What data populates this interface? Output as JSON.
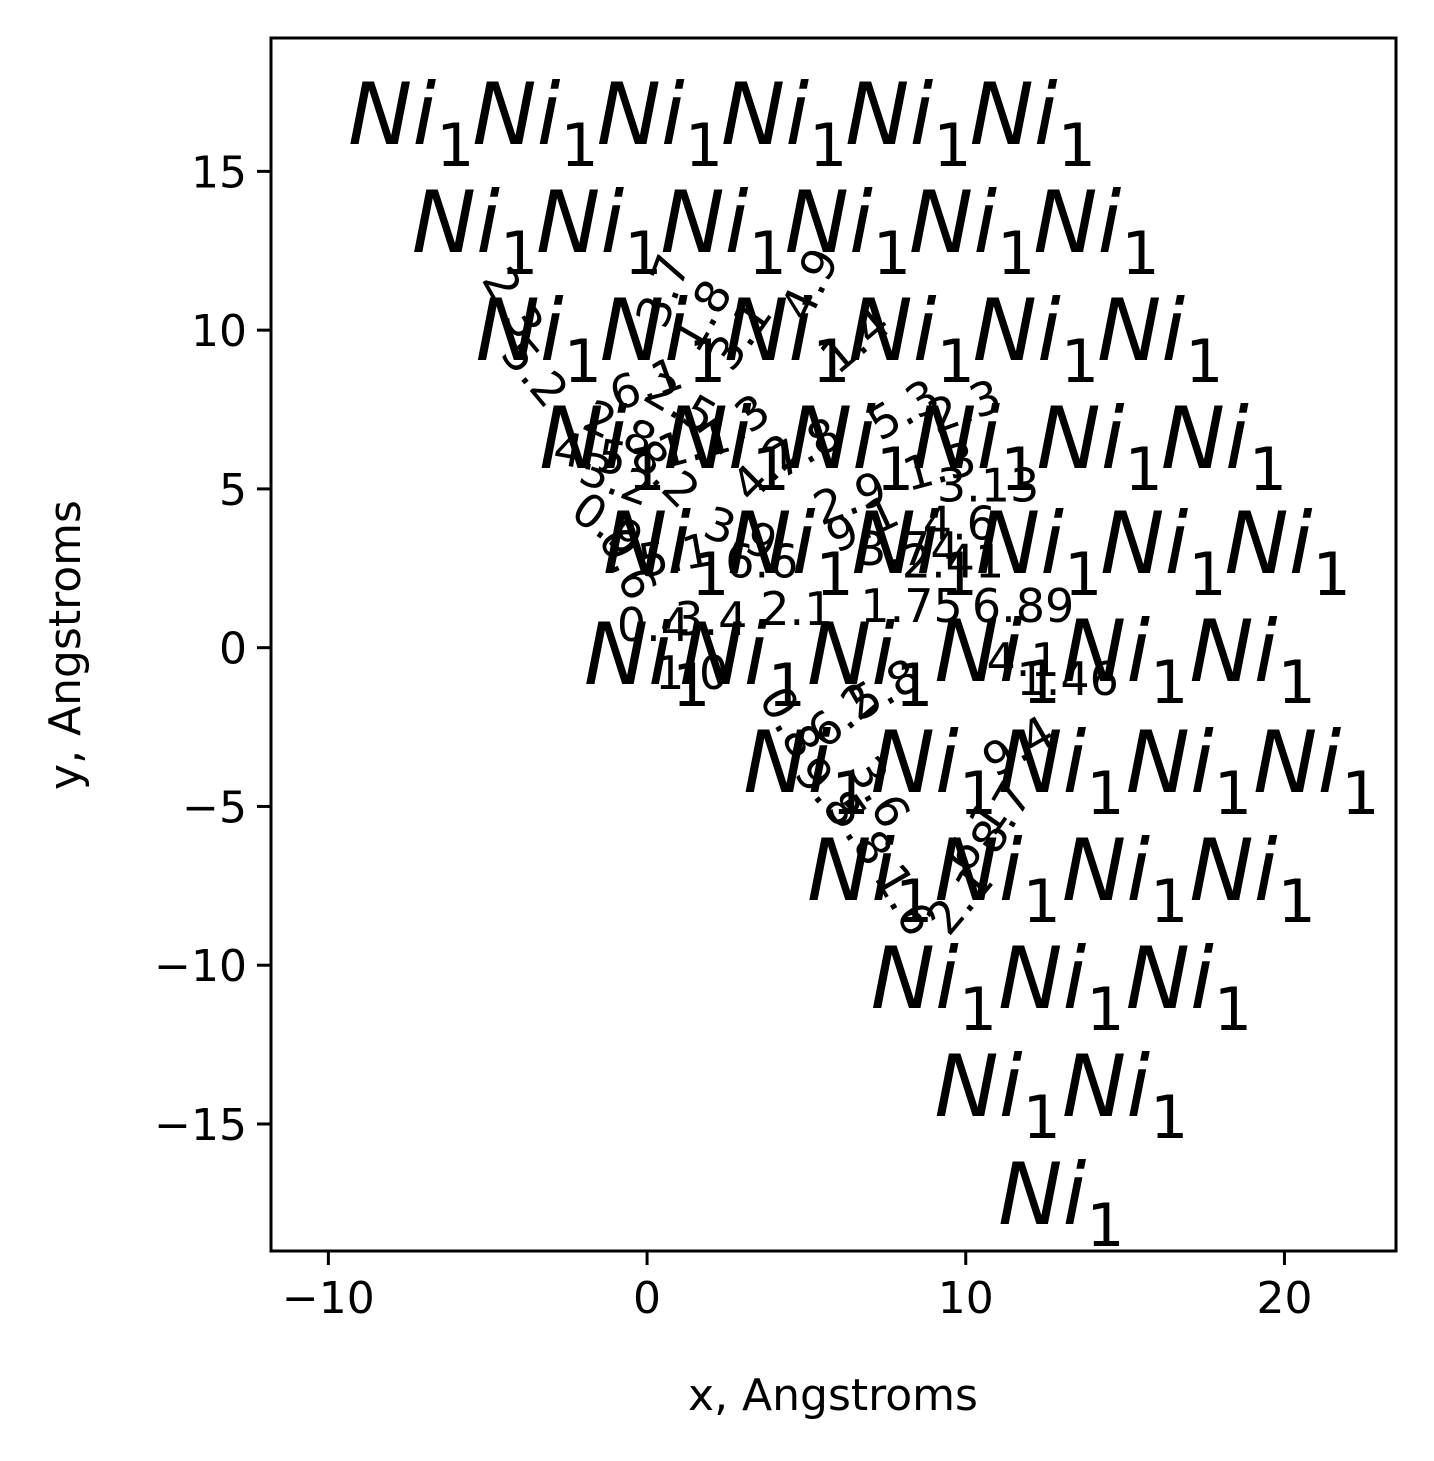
{
  "chart_data": {
    "type": "scatter",
    "xlabel": "x, Angstroms",
    "ylabel": "y, Angstroms",
    "xlim": [
      -11.8,
      23.5
    ],
    "ylim": [
      -19.0,
      19.2
    ],
    "xticks": [
      -10,
      0,
      10,
      20
    ],
    "xtick_labels": [
      "−10",
      "0",
      "10",
      "20"
    ],
    "yticks": [
      -15,
      -10,
      -5,
      0,
      5,
      10,
      15
    ],
    "ytick_labels": [
      "−15",
      "−10",
      "−5",
      "0",
      "5",
      "10",
      "15"
    ],
    "grid": false,
    "atom_label": {
      "element": "Ni",
      "count": "1"
    },
    "atoms": [
      {
        "x": -7.4,
        "y": 16.8
      },
      {
        "x": -3.5,
        "y": 16.8
      },
      {
        "x": 0.4,
        "y": 16.8
      },
      {
        "x": 4.3,
        "y": 16.8
      },
      {
        "x": 8.2,
        "y": 16.8
      },
      {
        "x": 12.1,
        "y": 16.8
      },
      {
        "x": -5.4,
        "y": 13.4
      },
      {
        "x": -1.5,
        "y": 13.4
      },
      {
        "x": 2.4,
        "y": 13.4
      },
      {
        "x": 6.3,
        "y": 13.4
      },
      {
        "x": 10.2,
        "y": 13.4
      },
      {
        "x": 14.1,
        "y": 13.4
      },
      {
        "x": -3.4,
        "y": 10.0
      },
      {
        "x": 0.5,
        "y": 10.0
      },
      {
        "x": 4.4,
        "y": 10.0
      },
      {
        "x": 8.3,
        "y": 10.0
      },
      {
        "x": 12.2,
        "y": 10.0
      },
      {
        "x": 16.1,
        "y": 10.0
      },
      {
        "x": -1.4,
        "y": 6.6
      },
      {
        "x": 2.5,
        "y": 6.6
      },
      {
        "x": 6.4,
        "y": 6.6
      },
      {
        "x": 10.3,
        "y": 6.6
      },
      {
        "x": 14.2,
        "y": 6.6
      },
      {
        "x": 18.1,
        "y": 6.6
      },
      {
        "x": 0.6,
        "y": 3.3
      },
      {
        "x": 4.5,
        "y": 3.3
      },
      {
        "x": 8.4,
        "y": 3.3
      },
      {
        "x": 12.3,
        "y": 3.3
      },
      {
        "x": 16.2,
        "y": 3.3
      },
      {
        "x": 20.1,
        "y": 3.3
      },
      {
        "x": 0.0,
        "y": -0.2
      },
      {
        "x": 3.0,
        "y": -0.2
      },
      {
        "x": 7.0,
        "y": -0.2
      },
      {
        "x": 11.0,
        "y": -0.1
      },
      {
        "x": 15.0,
        "y": -0.1
      },
      {
        "x": 19.0,
        "y": -0.1
      },
      {
        "x": 5.0,
        "y": -3.6
      },
      {
        "x": 9.0,
        "y": -3.6
      },
      {
        "x": 13.0,
        "y": -3.6
      },
      {
        "x": 17.0,
        "y": -3.6
      },
      {
        "x": 21.0,
        "y": -3.6
      },
      {
        "x": 7.0,
        "y": -7.0
      },
      {
        "x": 11.0,
        "y": -7.0
      },
      {
        "x": 15.0,
        "y": -7.0
      },
      {
        "x": 19.0,
        "y": -7.0
      },
      {
        "x": 9.0,
        "y": -10.4
      },
      {
        "x": 13.0,
        "y": -10.4
      },
      {
        "x": 17.0,
        "y": -10.4
      },
      {
        "x": 11.0,
        "y": -13.8
      },
      {
        "x": 15.0,
        "y": -13.8
      },
      {
        "x": 13.0,
        "y": -17.2
      }
    ],
    "bond_labels": [
      {
        "text": "2.3",
        "x": -4.3,
        "y": 10.8,
        "angle": 60
      },
      {
        "text": "5.2",
        "x": -3.6,
        "y": 8.6,
        "angle": 50
      },
      {
        "text": "3.7",
        "x": 0.6,
        "y": 11.2,
        "angle": -70
      },
      {
        "text": "1.8",
        "x": 1.8,
        "y": 10.4,
        "angle": -60
      },
      {
        "text": "3.1",
        "x": 3.0,
        "y": 9.8,
        "angle": -55
      },
      {
        "text": "4.9",
        "x": 5.2,
        "y": 11.4,
        "angle": -65
      },
      {
        "text": "1.4",
        "x": 6.6,
        "y": 9.6,
        "angle": -40
      },
      {
        "text": "5.3",
        "x": 8.1,
        "y": 7.4,
        "angle": -30
      },
      {
        "text": "2.3",
        "x": 10.0,
        "y": 7.5,
        "angle": -20
      },
      {
        "text": "1.3",
        "x": 9.2,
        "y": 5.6,
        "angle": -15
      },
      {
        "text": "3.13",
        "x": 10.7,
        "y": 5.0,
        "angle": 0
      },
      {
        "text": "2.9",
        "x": 6.4,
        "y": 4.6,
        "angle": -20
      },
      {
        "text": "9.1",
        "x": 6.8,
        "y": 3.8,
        "angle": -25
      },
      {
        "text": "4.6",
        "x": 9.8,
        "y": 3.8,
        "angle": 0
      },
      {
        "text": "3.74",
        "x": 8.2,
        "y": 3.0,
        "angle": 0
      },
      {
        "text": "2.41",
        "x": 9.6,
        "y": 2.6,
        "angle": 0
      },
      {
        "text": "6.89",
        "x": 11.8,
        "y": 1.2,
        "angle": 0
      },
      {
        "text": "1.75",
        "x": 8.3,
        "y": 1.2,
        "angle": 0
      },
      {
        "text": "2.1",
        "x": 4.7,
        "y": 1.1,
        "angle": 0
      },
      {
        "text": "4.1",
        "x": 11.8,
        "y": -0.5,
        "angle": 0
      },
      {
        "text": "1.46",
        "x": 13.2,
        "y": -1.1,
        "angle": 0
      },
      {
        "text": "1.0",
        "x": 1.4,
        "y": -0.9,
        "angle": 0
      },
      {
        "text": "3.4",
        "x": 2.0,
        "y": 0.8,
        "angle": 0
      },
      {
        "text": "5.8",
        "x": 7.5,
        "y": -1.4,
        "angle": -30
      },
      {
        "text": "9.4",
        "x": 11.7,
        "y": -3.2,
        "angle": -30
      },
      {
        "text": "0.8",
        "x": 4.4,
        "y": -2.4,
        "angle": 60
      },
      {
        "text": "6.2",
        "x": 6.2,
        "y": -2.2,
        "angle": -40
      },
      {
        "text": "9.8",
        "x": 5.6,
        "y": -4.6,
        "angle": 50
      },
      {
        "text": "3.6",
        "x": 7.2,
        "y": -4.6,
        "angle": 60
      },
      {
        "text": "5.8",
        "x": 6.6,
        "y": -5.8,
        "angle": 55
      },
      {
        "text": "8.7",
        "x": 11.2,
        "y": -5.4,
        "angle": -60
      },
      {
        "text": "6.1",
        "x": 10.4,
        "y": -6.0,
        "angle": -55
      },
      {
        "text": "2.1",
        "x": 9.9,
        "y": -8.0,
        "angle": -50
      },
      {
        "text": "1.6",
        "x": 8.0,
        "y": -8.0,
        "angle": 60
      },
      {
        "text": "3.2",
        "x": -1.0,
        "y": 5.2,
        "angle": 20
      },
      {
        "text": "0.9",
        "x": -1.3,
        "y": 3.8,
        "angle": 35
      },
      {
        "text": "2.8",
        "x": -0.9,
        "y": 6.8,
        "angle": 25
      },
      {
        "text": "6.1",
        "x": 0.0,
        "y": 8.2,
        "angle": -20
      },
      {
        "text": "4.5",
        "x": -1.8,
        "y": 6.0,
        "angle": 10
      },
      {
        "text": "8.2",
        "x": 0.5,
        "y": 5.4,
        "angle": 45
      },
      {
        "text": "1.1",
        "x": 1.5,
        "y": 6.3,
        "angle": -15
      },
      {
        "text": "7.3",
        "x": 2.8,
        "y": 6.9,
        "angle": -35
      },
      {
        "text": "0.6",
        "x": -0.7,
        "y": 2.6,
        "angle": 65
      },
      {
        "text": "5.1",
        "x": 0.9,
        "y": 2.8,
        "angle": -10
      },
      {
        "text": "3.9",
        "x": 2.9,
        "y": 3.5,
        "angle": 20
      },
      {
        "text": "4.2",
        "x": 3.8,
        "y": 5.6,
        "angle": -45
      },
      {
        "text": "7.8",
        "x": 5.0,
        "y": 6.2,
        "angle": -30
      },
      {
        "text": "2.5",
        "x": 1.0,
        "y": 7.6,
        "angle": 30
      },
      {
        "text": "6.6",
        "x": 3.6,
        "y": 2.6,
        "angle": 0
      },
      {
        "text": "0.4",
        "x": 0.2,
        "y": 0.6,
        "angle": 0
      }
    ]
  }
}
